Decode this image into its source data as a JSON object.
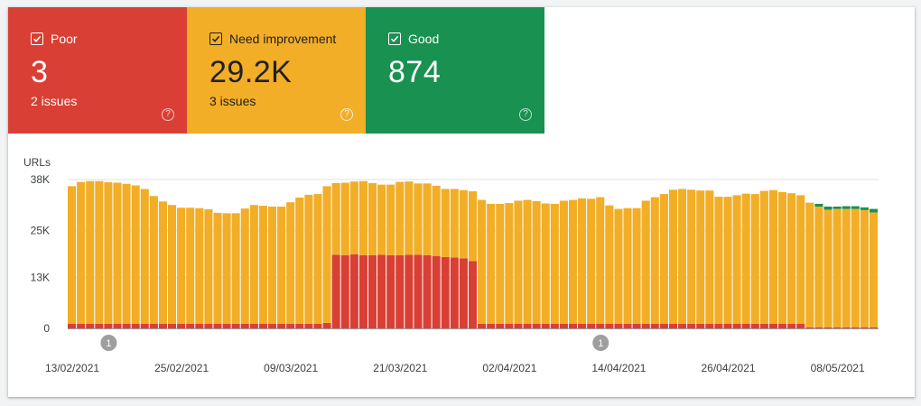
{
  "colors": {
    "poor": "#d93f34",
    "need_improvement": "#f2ae27",
    "good": "#199150",
    "grid": "#e0e0e0",
    "axis": "#9aa0a6",
    "annotation": "#9e9e9e"
  },
  "tiles": {
    "poor": {
      "label": "Poor",
      "value": "3",
      "sub": "2 issues",
      "help": "?"
    },
    "need_improvement": {
      "label": "Need improvement",
      "value": "29.2K",
      "sub": "3 issues",
      "help": "?"
    },
    "good": {
      "label": "Good",
      "value": "874",
      "help": "?"
    }
  },
  "chart_data": {
    "type": "bar",
    "stacked": true,
    "ylabel": "URLs",
    "ylim": [
      0,
      38000
    ],
    "yticks": [
      0,
      13000,
      25000,
      38000
    ],
    "ytick_labels": [
      "0",
      "13K",
      "25K",
      "38K"
    ],
    "xtick_labels": [
      "13/02/2021",
      "25/02/2021",
      "09/03/2021",
      "21/03/2021",
      "02/04/2021",
      "14/04/2021",
      "26/04/2021",
      "08/05/2021"
    ],
    "xtick_bar_index": [
      0,
      12,
      24,
      36,
      48,
      60,
      72,
      84
    ],
    "annotations": [
      {
        "label": "1",
        "bar_index": 4
      },
      {
        "label": "1",
        "bar_index": 58
      }
    ],
    "series": [
      {
        "name": "Poor",
        "values": [
          1200,
          1200,
          1200,
          1200,
          1200,
          1200,
          1200,
          1200,
          1200,
          1200,
          1200,
          1200,
          1200,
          1200,
          1200,
          1200,
          1200,
          1200,
          1200,
          1200,
          1200,
          1200,
          1200,
          1200,
          1200,
          1200,
          1200,
          1200,
          1400,
          18800,
          18700,
          18900,
          18700,
          18700,
          18800,
          18700,
          18700,
          18800,
          18800,
          18700,
          18500,
          18200,
          18100,
          17900,
          17200,
          1200,
          1200,
          1200,
          1200,
          1200,
          1200,
          1200,
          1200,
          1200,
          1200,
          1200,
          1200,
          1200,
          1200,
          1200,
          1200,
          1200,
          1200,
          1200,
          1200,
          1200,
          1200,
          1200,
          1200,
          1200,
          1200,
          1200,
          1200,
          1200,
          1200,
          1200,
          1200,
          1200,
          1200,
          1200,
          1200,
          300,
          300,
          300,
          300,
          300,
          300,
          300,
          300
        ]
      },
      {
        "name": "Need improvement",
        "values": [
          35100,
          36200,
          36400,
          36400,
          36100,
          36000,
          35700,
          35300,
          34400,
          32600,
          31200,
          30300,
          29600,
          29600,
          29500,
          29200,
          28300,
          28200,
          28200,
          29400,
          30300,
          30100,
          29900,
          29900,
          31000,
          32200,
          32900,
          33100,
          34900,
          18300,
          18500,
          18600,
          18900,
          18400,
          17900,
          18000,
          18700,
          18700,
          18200,
          18300,
          17900,
          17400,
          17500,
          17400,
          17800,
          31600,
          30600,
          30600,
          30800,
          31400,
          31600,
          31300,
          30700,
          30600,
          31400,
          31600,
          32000,
          31900,
          32300,
          30200,
          29300,
          29500,
          29500,
          31400,
          32300,
          33100,
          34200,
          34400,
          34200,
          34000,
          34000,
          32400,
          32400,
          32800,
          33200,
          33100,
          33900,
          34100,
          33600,
          33300,
          32800,
          31800,
          30800,
          30000,
          30200,
          30200,
          30200,
          29900,
          29300
        ]
      },
      {
        "name": "Good",
        "values": [
          0,
          0,
          0,
          0,
          0,
          0,
          0,
          0,
          0,
          0,
          0,
          0,
          0,
          0,
          0,
          0,
          0,
          0,
          0,
          0,
          0,
          0,
          0,
          0,
          0,
          0,
          0,
          0,
          0,
          0,
          0,
          0,
          0,
          0,
          0,
          0,
          0,
          0,
          0,
          0,
          0,
          0,
          0,
          0,
          0,
          0,
          0,
          0,
          0,
          0,
          0,
          0,
          0,
          0,
          0,
          0,
          0,
          0,
          0,
          0,
          0,
          0,
          0,
          0,
          0,
          0,
          0,
          0,
          0,
          0,
          0,
          0,
          0,
          0,
          0,
          0,
          0,
          0,
          0,
          0,
          0,
          0,
          700,
          800,
          600,
          700,
          700,
          700,
          900
        ]
      }
    ]
  }
}
